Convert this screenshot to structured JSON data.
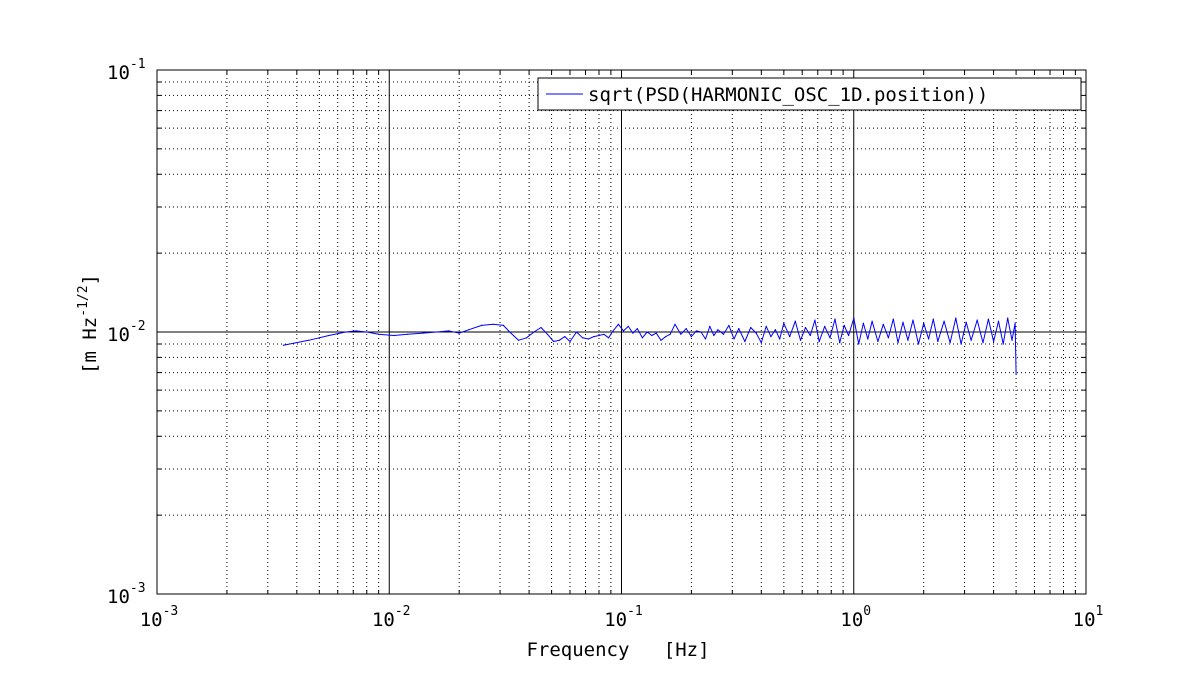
{
  "chart_data": {
    "type": "line",
    "title": "",
    "xlabel": "Frequency   [Hz]",
    "ylabel": "[m Hz",
    "ylabel_exponent": "-1/2",
    "ylabel_suffix": "]",
    "xscale": "log",
    "yscale": "log",
    "xlim": [
      0.001,
      10
    ],
    "ylim": [
      0.001,
      0.1
    ],
    "grid": true,
    "legend_position": "top-right",
    "x_ticks": [
      {
        "base": "10",
        "exp": "-3",
        "value": 0.001
      },
      {
        "base": "10",
        "exp": "-2",
        "value": 0.01
      },
      {
        "base": "10",
        "exp": "-1",
        "value": 0.1
      },
      {
        "base": "10",
        "exp": "0",
        "value": 1
      },
      {
        "base": "10",
        "exp": "1",
        "value": 10
      }
    ],
    "y_ticks": [
      {
        "base": "10",
        "exp": "-3",
        "value": 0.001
      },
      {
        "base": "10",
        "exp": "-2",
        "value": 0.01
      },
      {
        "base": "10",
        "exp": "-1",
        "value": 0.1
      }
    ],
    "series": [
      {
        "name": "sqrt(PSD(HARMONIC_OSC_1D.position))",
        "color": "#0000ff",
        "x": [
          0.0035,
          0.0045,
          0.0055,
          0.0065,
          0.0072,
          0.008,
          0.009,
          0.0105,
          0.012,
          0.014,
          0.016,
          0.018,
          0.02,
          0.022,
          0.025,
          0.028,
          0.031,
          0.033,
          0.036,
          0.039,
          0.042,
          0.045,
          0.048,
          0.051,
          0.054,
          0.057,
          0.06,
          0.064,
          0.068,
          0.072,
          0.076,
          0.08,
          0.084,
          0.088,
          0.092,
          0.097,
          0.102,
          0.107,
          0.112,
          0.117,
          0.123,
          0.129,
          0.135,
          0.141,
          0.148,
          0.155,
          0.162,
          0.17,
          0.18,
          0.19,
          0.2,
          0.21,
          0.22,
          0.23,
          0.24,
          0.25,
          0.26,
          0.275,
          0.29,
          0.305,
          0.32,
          0.34,
          0.36,
          0.38,
          0.4,
          0.42,
          0.44,
          0.46,
          0.48,
          0.5,
          0.53,
          0.56,
          0.59,
          0.62,
          0.65,
          0.68,
          0.71,
          0.75,
          0.79,
          0.83,
          0.87,
          0.91,
          0.95,
          1.0,
          1.05,
          1.1,
          1.15,
          1.2,
          1.27,
          1.34,
          1.41,
          1.48,
          1.55,
          1.63,
          1.71,
          1.8,
          1.9,
          2.0,
          2.1,
          2.2,
          2.3,
          2.45,
          2.6,
          2.75,
          2.9,
          3.05,
          3.2,
          3.4,
          3.6,
          3.8,
          4.0,
          4.2,
          4.4,
          4.6,
          4.8,
          4.95,
          5.0
        ],
        "y": [
          0.0089,
          0.0093,
          0.0097,
          0.01,
          0.0101,
          0.01,
          0.0098,
          0.0097,
          0.0098,
          0.0099,
          0.01,
          0.0101,
          0.0099,
          0.0102,
          0.0106,
          0.0107,
          0.0106,
          0.01,
          0.0093,
          0.0095,
          0.01,
          0.0104,
          0.0098,
          0.0092,
          0.0093,
          0.0096,
          0.0092,
          0.01,
          0.0095,
          0.0094,
          0.0096,
          0.0097,
          0.0098,
          0.0095,
          0.0101,
          0.0107,
          0.0101,
          0.0105,
          0.0099,
          0.0103,
          0.0095,
          0.01,
          0.0097,
          0.0099,
          0.0093,
          0.0096,
          0.0098,
          0.0107,
          0.0098,
          0.0103,
          0.0096,
          0.0101,
          0.01,
          0.0094,
          0.0105,
          0.0097,
          0.0102,
          0.0098,
          0.0106,
          0.0094,
          0.0103,
          0.0092,
          0.0104,
          0.0099,
          0.0091,
          0.0105,
          0.0096,
          0.0102,
          0.0094,
          0.0108,
          0.0096,
          0.011,
          0.0093,
          0.0104,
          0.0097,
          0.0111,
          0.0092,
          0.0105,
          0.0095,
          0.0112,
          0.0091,
          0.0106,
          0.0097,
          0.0113,
          0.009,
          0.0108,
          0.0094,
          0.011,
          0.0092,
          0.0107,
          0.0095,
          0.0112,
          0.0091,
          0.0109,
          0.0093,
          0.0111,
          0.009,
          0.0108,
          0.0094,
          0.0112,
          0.0092,
          0.011,
          0.0091,
          0.0113,
          0.009,
          0.0109,
          0.0093,
          0.0111,
          0.0091,
          0.0112,
          0.0092,
          0.011,
          0.009,
          0.0113,
          0.0093,
          0.0108,
          0.0069
        ]
      }
    ]
  }
}
